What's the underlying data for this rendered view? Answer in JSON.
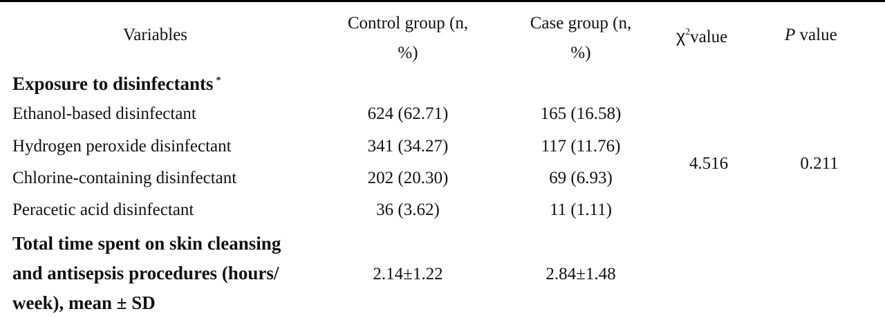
{
  "header": {
    "variables": "Variables",
    "control_line1": "Control group (n,",
    "control_line2": "%)",
    "case_line1": "Case group (n,",
    "case_line2": "%)",
    "chi_symbol": "χ",
    "chi_sup": "2",
    "chi_suffix": "value",
    "p_italic": "P",
    "p_suffix": " value"
  },
  "section1": {
    "title": "Exposure to disinfectants",
    "marker": "*"
  },
  "rows": [
    {
      "label": "Ethanol-based disinfectant",
      "control": "624 (62.71)",
      "case": "165 (16.58)"
    },
    {
      "label": "Hydrogen peroxide disinfectant",
      "control": "341 (34.27)",
      "case": "117 (11.76)"
    },
    {
      "label": "Chlorine-containing disinfectant",
      "control": "202 (20.30)",
      "case": "69 (6.93)"
    },
    {
      "label": "Peracetic acid disinfectant",
      "control": "36 (3.62)",
      "case": "11 (1.11)"
    }
  ],
  "stats": {
    "chi_value": "4.516",
    "p_value": "0.211"
  },
  "section2": {
    "line1": "Total time spent on skin cleansing",
    "line2": "and antisepsis  procedures (hours/",
    "line3": "week), mean ± SD",
    "control": "2.14±1.22",
    "case": "2.84±1.48"
  }
}
